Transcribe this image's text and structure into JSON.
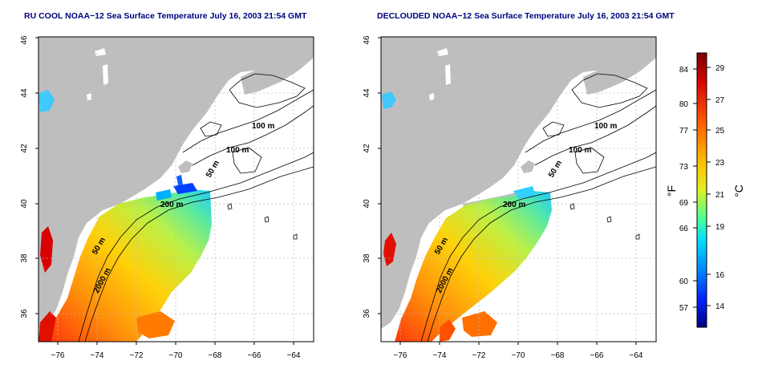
{
  "panels": [
    {
      "title": "RU COOL NOAA−12 Sea Surface Temperature July 16, 2003 21:54 GMT",
      "contour_labels": [
        "100 m",
        "100 m",
        "50 m",
        "200 m",
        "50 m",
        "2000 m"
      ]
    },
    {
      "title": "DECLOUDED NOAA−12 Sea Surface Temperature July 16, 2003 21:54 GMT",
      "contour_labels": [
        "100 m",
        "100 m",
        "50 m",
        "200 m",
        "50 m",
        "2000 m"
      ]
    }
  ],
  "lat_ticks": [
    "36",
    "38",
    "40",
    "42",
    "44",
    "46"
  ],
  "lon_ticks": [
    "−76",
    "−74",
    "−72",
    "−70",
    "−68",
    "−66",
    "−64"
  ],
  "colorbar": {
    "f_unit": "°F",
    "c_unit": "°C",
    "f_ticks": [
      "84",
      "80",
      "77",
      "73",
      "69",
      "66",
      "60",
      "57"
    ],
    "c_ticks": [
      "29",
      "27",
      "25",
      "23",
      "21",
      "19",
      "16",
      "14"
    ],
    "colors": [
      "#000080",
      "#0000ff",
      "#0080ff",
      "#00e0ff",
      "#40ff80",
      "#c0ff20",
      "#ffff00",
      "#ffb000",
      "#ff6000",
      "#e00000",
      "#800000"
    ]
  },
  "colors": {
    "title": "#000080",
    "land": "#bebebe",
    "contour": "#000000",
    "grid": "#bbbbbb"
  }
}
